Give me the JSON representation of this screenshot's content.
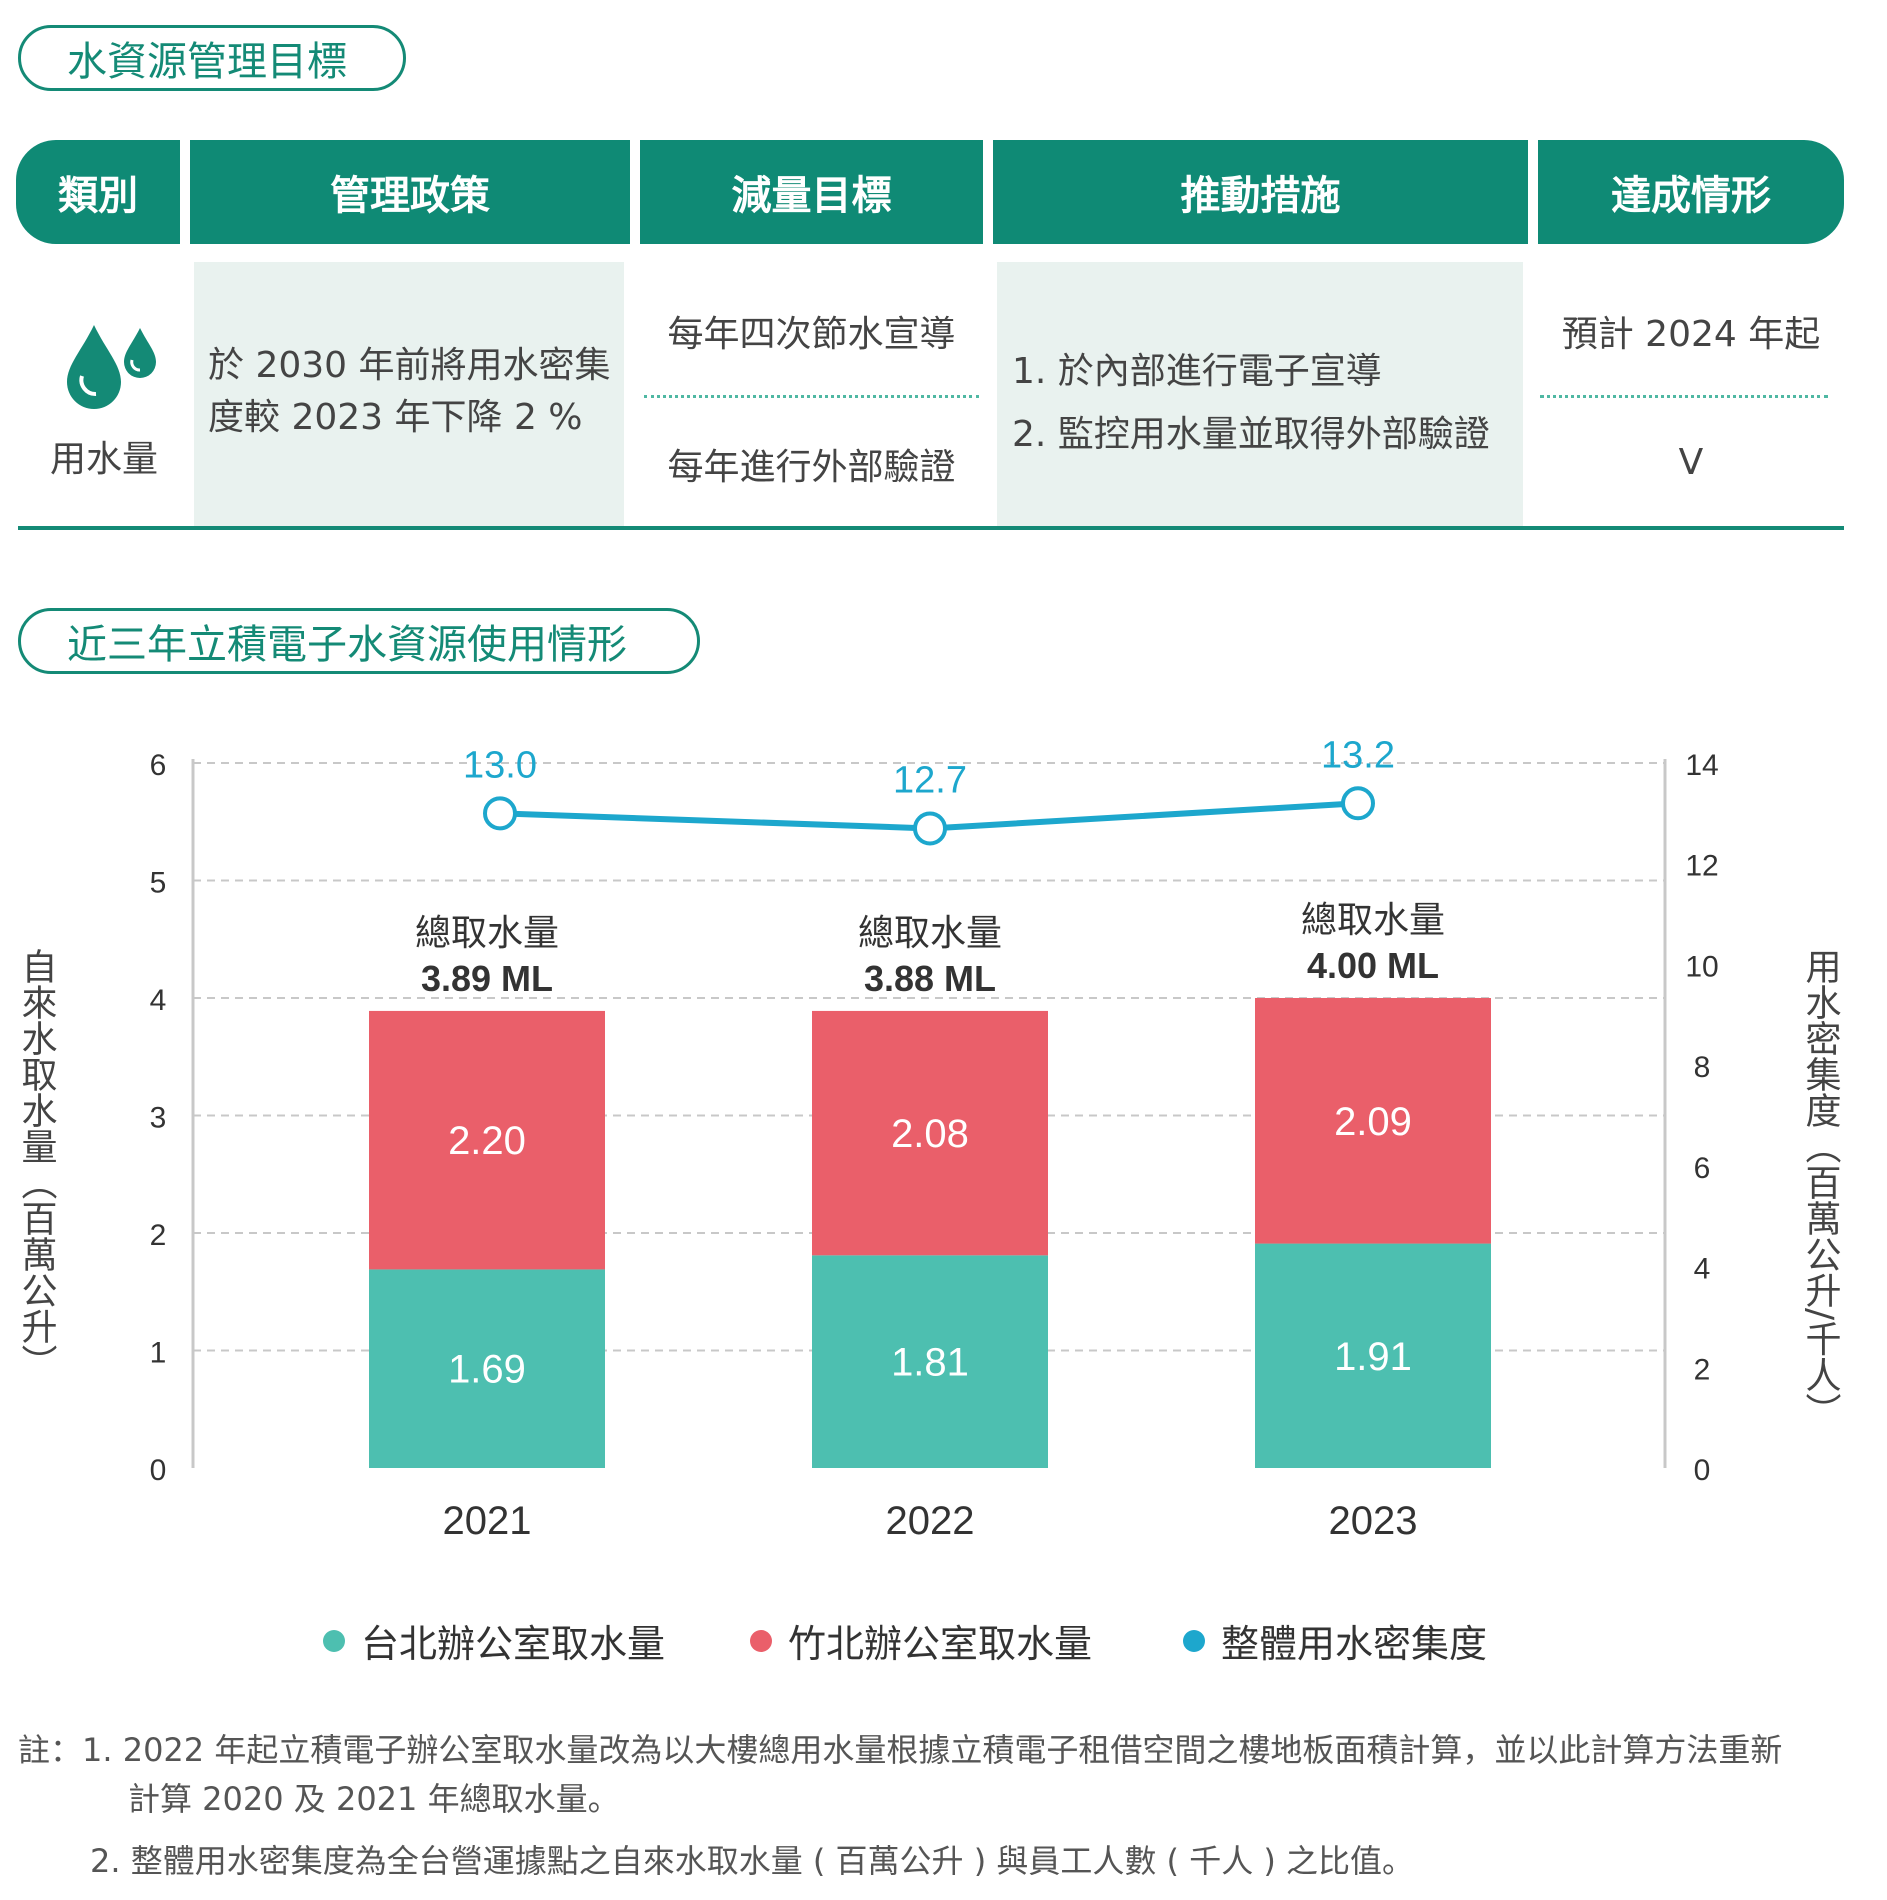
{
  "section1_title": "水資源管理目標",
  "section2_title": "近三年立積電子水資源使用情形",
  "table": {
    "headers": [
      "類別",
      "管理政策",
      "減量目標",
      "推動措施",
      "達成情形"
    ],
    "category": "用水量",
    "category_icon": "water-drops-icon",
    "policy": "於 2030 年前將用水密集度較 2023 年下降 2 %",
    "targets": [
      "每年四次節水宣導",
      "每年進行外部驗證"
    ],
    "actions": [
      "1. 於內部進行電子宣導",
      "2. 監控用水量並取得外部驗證"
    ],
    "status": [
      "預計 2024 年起",
      "V"
    ]
  },
  "colors": {
    "brand_green": "#148a76",
    "taipei": "#4dbfb0",
    "zhubei": "#ea5f6a",
    "intensity": "#1da7cd"
  },
  "chart_data": {
    "type": "bar",
    "stacked": true,
    "categories": [
      "2021",
      "2022",
      "2023"
    ],
    "series": [
      {
        "name": "台北辦公室取水量",
        "values": [
          1.69,
          1.81,
          1.91
        ],
        "axis": "left",
        "color": "#4dbfb0"
      },
      {
        "name": "竹北辦公室取水量",
        "values": [
          2.2,
          2.08,
          2.09
        ],
        "axis": "left",
        "color": "#ea5f6a"
      },
      {
        "name": "整體用水密集度",
        "type": "line",
        "values": [
          13.0,
          12.7,
          13.2
        ],
        "axis": "right",
        "color": "#1da7cd"
      }
    ],
    "totals_label": "總取水量",
    "totals": [
      "3.89 ML",
      "3.88 ML",
      "4.00 ML"
    ],
    "ylabel": "自來水取水量（百萬公升）",
    "y2label": "用水密集度（百萬公升/千人）",
    "ylim": [
      0,
      6
    ],
    "y2lim": [
      0,
      14
    ],
    "yticks": [
      "0",
      "1",
      "2",
      "3",
      "4",
      "5",
      "6"
    ],
    "y2ticks": [
      "0",
      "2",
      "4",
      "6",
      "8",
      "10",
      "12",
      "14"
    ],
    "grid": true,
    "legend_position": "bottom"
  },
  "notes": [
    "註：1. 2022 年起立積電子辦公室取水量改為以大樓總用水量根據立積電子租借空間之樓地板面積計算，並以此計算方法重新",
    "計算 2020 及 2021 年總取水量。",
    "2. 整體用水密集度為全台營運據點之自來水取水量 ( 百萬公升 ) 與員工人數 ( 千人 ) 之比值。"
  ]
}
